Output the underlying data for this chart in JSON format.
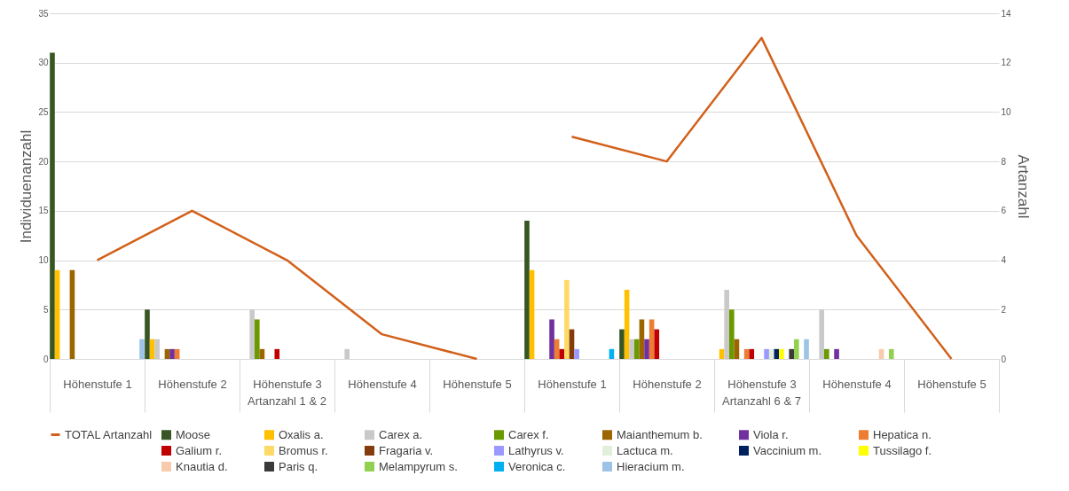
{
  "chart_data": {
    "type": "bar",
    "categories": [
      "Höhenstufe 1",
      "Höhenstufe 2",
      "Höhenstufe 3",
      "Höhenstufe 4",
      "Höhenstufe 5",
      "Höhenstufe 1",
      "Höhenstufe 2",
      "Höhenstufe 3",
      "Höhenstufe 4",
      "Höhenstufe 5"
    ],
    "annotations": [
      "Artanzahl 1 & 2",
      "Artanzahl 6 & 7"
    ],
    "ylabel": "Individuenanzahl",
    "y2label": "Artanzahl",
    "ylim": [
      0,
      35
    ],
    "yticks": [
      0,
      5,
      10,
      15,
      20,
      25,
      30,
      35
    ],
    "y2lim": [
      0,
      14
    ],
    "y2ticks": [
      0,
      2,
      4,
      6,
      8,
      10,
      12,
      14
    ],
    "grid": "y",
    "legend": "bottom",
    "series": [
      {
        "name": "Moose",
        "color": "#375623",
        "values": [
          31,
          5,
          null,
          null,
          null,
          14,
          3,
          null,
          null,
          null
        ]
      },
      {
        "name": "Oxalis a.",
        "color": "#ffc000",
        "values": [
          9,
          2,
          null,
          null,
          null,
          9,
          7,
          1,
          null,
          null
        ]
      },
      {
        "name": "Carex a.",
        "color": "#c9c9c9",
        "values": [
          null,
          2,
          5,
          1,
          null,
          null,
          2,
          7,
          5,
          null
        ]
      },
      {
        "name": "Carex f.",
        "color": "#6a9a00",
        "values": [
          null,
          null,
          4,
          null,
          null,
          null,
          2,
          5,
          1,
          null
        ]
      },
      {
        "name": "Maianthemum b.",
        "color": "#9c6500",
        "values": [
          9,
          1,
          1,
          null,
          null,
          null,
          4,
          2,
          null,
          null
        ]
      },
      {
        "name": "Viola r.",
        "color": "#7030a0",
        "values": [
          null,
          1,
          null,
          null,
          null,
          4,
          2,
          null,
          1,
          null
        ]
      },
      {
        "name": "Hepatica n.",
        "color": "#ed7d31",
        "values": [
          null,
          1,
          null,
          null,
          null,
          2,
          4,
          1,
          null,
          null
        ]
      },
      {
        "name": "Galium r.",
        "color": "#c00000",
        "values": [
          null,
          null,
          1,
          null,
          null,
          1,
          3,
          1,
          null,
          null
        ]
      },
      {
        "name": "Bromus r.",
        "color": "#ffd966",
        "values": [
          null,
          null,
          null,
          null,
          null,
          8,
          null,
          null,
          null,
          null
        ]
      },
      {
        "name": "Fragaria v.",
        "color": "#843c0c",
        "values": [
          null,
          null,
          null,
          null,
          null,
          3,
          null,
          null,
          null,
          null
        ]
      },
      {
        "name": "Lathyrus v.",
        "color": "#9999ff",
        "values": [
          null,
          null,
          null,
          null,
          null,
          1,
          null,
          1,
          null,
          null
        ]
      },
      {
        "name": "Lactuca m.",
        "color": "#e2efda",
        "values": [
          null,
          null,
          null,
          null,
          null,
          null,
          null,
          1,
          null,
          null
        ]
      },
      {
        "name": "Vaccinium m.",
        "color": "#002060",
        "values": [
          null,
          null,
          null,
          null,
          null,
          null,
          null,
          1,
          null,
          null
        ]
      },
      {
        "name": "Tussilago f.",
        "color": "#ffff00",
        "values": [
          null,
          null,
          null,
          null,
          null,
          null,
          null,
          1,
          null,
          null
        ]
      },
      {
        "name": "Knautia d.",
        "color": "#f8cbad",
        "values": [
          null,
          null,
          null,
          null,
          null,
          null,
          null,
          null,
          1,
          null
        ]
      },
      {
        "name": "Paris q.",
        "color": "#3a3a3a",
        "values": [
          null,
          null,
          null,
          null,
          null,
          null,
          null,
          1,
          null,
          null
        ]
      },
      {
        "name": "Melampyrum s.",
        "color": "#92d050",
        "values": [
          null,
          null,
          null,
          null,
          null,
          null,
          null,
          2,
          1,
          null
        ]
      },
      {
        "name": "Veronica c.",
        "color": "#00b0f0",
        "values": [
          null,
          null,
          null,
          null,
          null,
          1,
          null,
          null,
          null,
          null
        ]
      },
      {
        "name": "Hieracium m.",
        "color": "#9dc3e6",
        "values": [
          2,
          null,
          null,
          null,
          null,
          null,
          null,
          2,
          null,
          null
        ]
      },
      {
        "name": "TOTAL Artanzahl",
        "color": "#d2601a",
        "type": "line",
        "axis": "y2",
        "values": [
          4,
          6,
          4,
          1,
          0,
          9,
          8,
          13,
          5,
          0
        ]
      }
    ]
  }
}
